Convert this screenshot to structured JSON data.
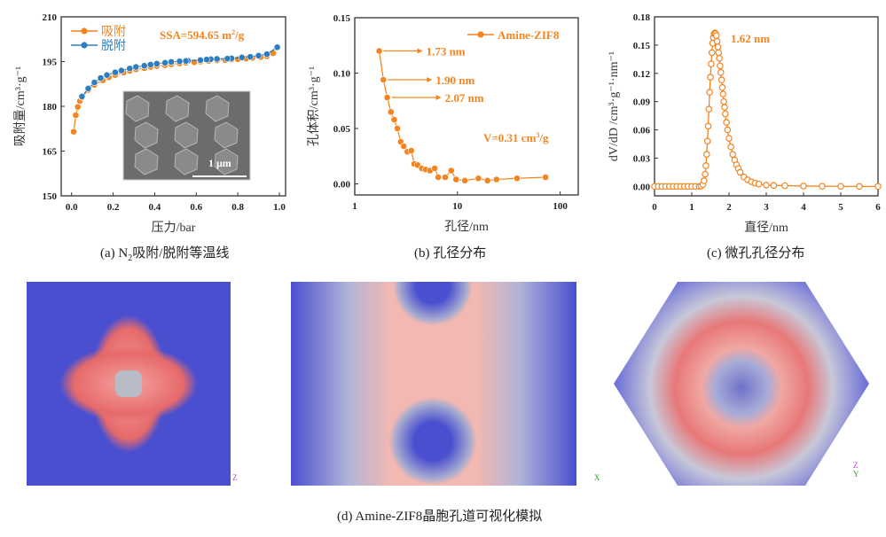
{
  "captions": {
    "a_prefix": "(a)  N",
    "a_sub": "2",
    "a_rest": "吸附/脱附等温线",
    "b": "(b)  孔径分布",
    "c": "(c)  微孔孔径分布",
    "d": "(d)  Amine-ZIF8晶胞孔道可视化模拟"
  },
  "colors": {
    "orange": "#f5841f",
    "blue": "#2e7ebf"
  },
  "inset": {
    "scale_label": "1 μm"
  },
  "axis_labels_3d": {
    "left": "Z",
    "middle": "X",
    "right_z": "Z",
    "right_y": "Y"
  },
  "chart_data": [
    {
      "type": "line",
      "id": "a",
      "xlabel": "压力/bar",
      "ylabel": "吸附量/cm³·g⁻¹",
      "xlim": [
        -0.05,
        1.03
      ],
      "ylim": [
        150,
        210
      ],
      "xticks": [
        "0.0",
        "0.2",
        "0.4",
        "0.6",
        "0.8",
        "1.0"
      ],
      "xtick_values": [
        0,
        0.2,
        0.4,
        0.6,
        0.8,
        1.0
      ],
      "yticks": [
        "150",
        "165",
        "180",
        "195",
        "210"
      ],
      "ytick_values": [
        150,
        165,
        180,
        195,
        210
      ],
      "annotation": "SSA=594.65 m²/g",
      "annotation_main": "SSA=594.65 m",
      "annotation_sup": "2",
      "annotation_tail": "/g",
      "legend": [
        "吸附",
        "脱附"
      ],
      "legend_position": "top-left",
      "series": [
        {
          "name": "吸附",
          "color": "#f5841f",
          "x": [
            0.01,
            0.02,
            0.03,
            0.04,
            0.05,
            0.08,
            0.11,
            0.15,
            0.18,
            0.21,
            0.25,
            0.28,
            0.31,
            0.35,
            0.38,
            0.41,
            0.45,
            0.48,
            0.52,
            0.55,
            0.59,
            0.62,
            0.66,
            0.7,
            0.74,
            0.77,
            0.8,
            0.84,
            0.87,
            0.91,
            0.94,
            0.97,
            0.99
          ],
          "y": [
            171.5,
            177,
            179.8,
            181.8,
            183,
            185.5,
            187.2,
            188.7,
            189.7,
            190.5,
            191.3,
            191.9,
            192.4,
            192.8,
            193.2,
            193.5,
            193.8,
            194.1,
            194.4,
            194.6,
            194.8,
            195,
            195.2,
            195.4,
            195.5,
            195.7,
            195.8,
            196,
            196.2,
            196.5,
            196.8,
            197.8,
            199.8
          ]
        },
        {
          "name": "脱附",
          "color": "#2e7ebf",
          "x": [
            0.99,
            0.94,
            0.9,
            0.86,
            0.82,
            0.77,
            0.75,
            0.7,
            0.67,
            0.65,
            0.62,
            0.56,
            0.55,
            0.52,
            0.48,
            0.45,
            0.41,
            0.38,
            0.35,
            0.31,
            0.28,
            0.24,
            0.21,
            0.17,
            0.14,
            0.11,
            0.08,
            0.05
          ],
          "y": [
            199.8,
            197.5,
            197,
            196.6,
            196.4,
            196.1,
            196,
            195.9,
            195.8,
            195.7,
            195.5,
            195.3,
            195.2,
            195.1,
            194.9,
            194.6,
            194.3,
            194,
            193.6,
            193.2,
            192.7,
            192,
            191.4,
            190.5,
            189.5,
            188,
            186,
            183.3
          ]
        }
      ]
    },
    {
      "type": "line",
      "id": "b",
      "xscale": "log",
      "xlabel": "孔径/nm",
      "ylabel": "孔体积/cm³·g⁻¹",
      "xlim": [
        1,
        150
      ],
      "ylim": [
        -0.01,
        0.15
      ],
      "xticks": [
        "1",
        "10",
        "100"
      ],
      "xtick_values": [
        1,
        10,
        100
      ],
      "yticks": [
        "0.00",
        "0.05",
        "0.10",
        "0.15"
      ],
      "ytick_values": [
        0,
        0.05,
        0.1,
        0.15
      ],
      "legend": [
        "Amine-ZIF8"
      ],
      "legend_position": "top-right",
      "annotations": [
        "1.73 nm",
        "1.90 nm",
        "2.07 nm"
      ],
      "annotation_points": [
        [
          1.73,
          0.12
        ],
        [
          1.9,
          0.094
        ],
        [
          2.07,
          0.078
        ]
      ],
      "volume_main": "V=0.31 cm",
      "volume_sup": "3",
      "volume_tail": "/g",
      "series": [
        {
          "name": "Amine-ZIF8",
          "color": "#f5841f",
          "x": [
            1.73,
            1.9,
            2.07,
            2.25,
            2.42,
            2.6,
            2.8,
            3.0,
            3.25,
            3.55,
            3.8,
            4.1,
            4.5,
            4.9,
            5.4,
            6.0,
            6.5,
            7.6,
            8.7,
            9.7,
            11.8,
            16,
            19.6,
            24,
            38,
            72
          ],
          "y": [
            0.12,
            0.094,
            0.078,
            0.065,
            0.058,
            0.05,
            0.038,
            0.034,
            0.029,
            0.03,
            0.018,
            0.017,
            0.014,
            0.013,
            0.012,
            0.014,
            0.006,
            0.006,
            0.012,
            0.004,
            0.003,
            0.005,
            0.003,
            0.004,
            0.005,
            0.006
          ]
        }
      ]
    },
    {
      "type": "line",
      "id": "c",
      "xlabel": "直径/nm",
      "ylabel": "dV/dD /cm³·g⁻¹·nm⁻¹",
      "xlim": [
        0,
        6
      ],
      "ylim": [
        -0.01,
        0.18
      ],
      "xticks": [
        "0",
        "1",
        "2",
        "3",
        "4",
        "5",
        "6"
      ],
      "xtick_values": [
        0,
        1,
        2,
        3,
        4,
        5,
        6
      ],
      "yticks": [
        "0.00",
        "0.03",
        "0.06",
        "0.09",
        "0.12",
        "0.15",
        "0.18"
      ],
      "ytick_values": [
        0,
        0.03,
        0.06,
        0.09,
        0.12,
        0.15,
        0.18
      ],
      "annotation": "1.62 nm",
      "series": [
        {
          "name": "Amine-ZIF8",
          "color": "#f5841f",
          "x": [
            0,
            0.1,
            0.2,
            0.3,
            0.4,
            0.5,
            0.6,
            0.7,
            0.8,
            0.9,
            1.0,
            1.1,
            1.2,
            1.25,
            1.3,
            1.33,
            1.36,
            1.38,
            1.4,
            1.42,
            1.44,
            1.46,
            1.48,
            1.5,
            1.52,
            1.54,
            1.56,
            1.58,
            1.6,
            1.62,
            1.64,
            1.66,
            1.68,
            1.7,
            1.72,
            1.74,
            1.76,
            1.78,
            1.8,
            1.82,
            1.84,
            1.86,
            1.88,
            1.9,
            1.93,
            1.96,
            2.0,
            2.05,
            2.1,
            2.15,
            2.2,
            2.25,
            2.3,
            2.4,
            2.5,
            2.6,
            2.7,
            2.8,
            3.0,
            3.2,
            3.5,
            4.0,
            4.5,
            5.0,
            5.5,
            6.0
          ],
          "y": [
            0,
            0,
            0,
            0,
            0,
            0,
            0,
            0,
            0,
            0,
            0,
            0,
            0,
            0.0005,
            0.002,
            0.006,
            0.013,
            0.022,
            0.034,
            0.048,
            0.064,
            0.082,
            0.1,
            0.116,
            0.13,
            0.142,
            0.152,
            0.158,
            0.162,
            0.163,
            0.162,
            0.16,
            0.154,
            0.148,
            0.142,
            0.136,
            0.128,
            0.121,
            0.113,
            0.105,
            0.098,
            0.09,
            0.084,
            0.077,
            0.068,
            0.06,
            0.051,
            0.042,
            0.034,
            0.028,
            0.023,
            0.019,
            0.015,
            0.01,
            0.007,
            0.005,
            0.0035,
            0.0025,
            0.0015,
            0.001,
            0.0008,
            0.0004,
            0.0002,
            0.0001,
            0,
            0
          ]
        }
      ]
    }
  ]
}
